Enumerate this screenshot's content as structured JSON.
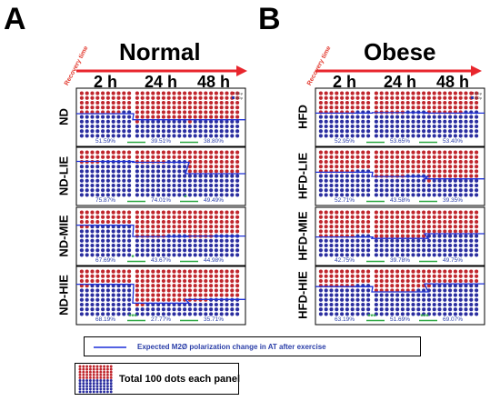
{
  "letters": {
    "a": "A",
    "b": "B"
  },
  "panelA": {
    "title": "Normal",
    "recovery_label": "Recovery time",
    "times": [
      "2 h",
      "24 h",
      "48 h"
    ],
    "rows": [
      {
        "label": "ND",
        "m1": [
          48,
          61,
          61
        ],
        "pcts": [
          "51.59%",
          "39.51%",
          "38.80%"
        ],
        "stars": [
          "",
          "",
          ""
        ],
        "sig": [
          false,
          true,
          true
        ]
      },
      {
        "label": "ND-LIE",
        "m1": [
          24,
          26,
          50
        ],
        "pcts": [
          "75.87%",
          "74.01%",
          "49.49%"
        ],
        "stars": [
          "",
          "",
          "*"
        ],
        "sig": [
          false,
          true,
          true
        ]
      },
      {
        "label": "ND-MIE",
        "m1": [
          32,
          56,
          55
        ],
        "pcts": [
          "67.69%",
          "43.67%",
          "44.98%"
        ],
        "stars": [
          "",
          "*",
          ""
        ],
        "sig": [
          false,
          true,
          true
        ]
      },
      {
        "label": "ND-HIE",
        "m1": [
          32,
          72,
          64
        ],
        "pcts": [
          "68.19%",
          "27.77%",
          "35.71%"
        ],
        "stars": [
          "",
          "***",
          ""
        ],
        "sig": [
          false,
          true,
          true
        ]
      }
    ]
  },
  "panelB": {
    "title": "Obese",
    "recovery_label": "Recovery time",
    "times": [
      "2 h",
      "24 h",
      "48 h"
    ],
    "rows": [
      {
        "label": "HFD",
        "m1": [
          47,
          46,
          47
        ],
        "pcts": [
          "52.95%",
          "53.65%",
          "53.40%"
        ],
        "stars": [
          "",
          "",
          ""
        ],
        "sig": [
          false,
          true,
          true
        ]
      },
      {
        "label": "HFD-LIE",
        "m1": [
          47,
          56,
          61
        ],
        "pcts": [
          "52.71%",
          "43.58%",
          "39.35%"
        ],
        "stars": [
          "",
          "",
          ""
        ],
        "sig": [
          false,
          true,
          true
        ]
      },
      {
        "label": "HFD-MIE",
        "m1": [
          57,
          60,
          50
        ],
        "pcts": [
          "42.75%",
          "39.78%",
          "49.75%"
        ],
        "stars": [
          "",
          "",
          ""
        ],
        "sig": [
          false,
          true,
          true
        ]
      },
      {
        "label": "HFD-HIE",
        "m1": [
          37,
          48,
          31
        ],
        "pcts": [
          "63.19%",
          "51.69%",
          "69.07%"
        ],
        "stars": [
          "",
          "***",
          "***"
        ],
        "sig": [
          false,
          true,
          true
        ]
      }
    ]
  },
  "legend_small": {
    "m1": "M1φ",
    "m2": "M2φ"
  },
  "legend": {
    "line_text": "Expected M2Ø polarization change in AT after exercise",
    "dots_text": "Total 100 dots each panel"
  },
  "colors": {
    "m1": "#c0262d",
    "m2": "#2b2ea0",
    "arrow": "#e8262d",
    "line": "#1c2fd8",
    "sig": "#2fa844",
    "stars": "#2fa844"
  }
}
